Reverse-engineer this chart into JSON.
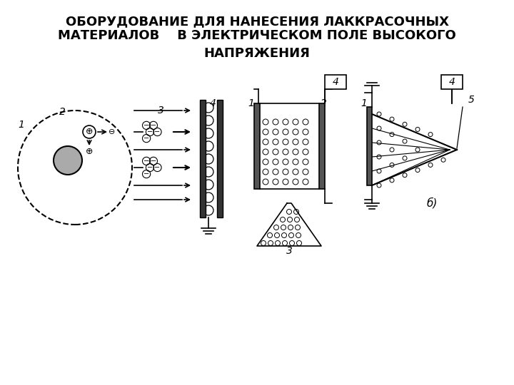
{
  "title_line1": "ОБОРУДОВАНИЕ ДЛЯ НАНЕСЕНИЯ ЛАККРАСОЧНЫХ",
  "title_line2": "МАТЕРИАЛОВ    В ЭЛЕКТРИЧЕСКОМ ПОЛЕ ВЫСОКОГО",
  "title_line3": "НАПРЯЖЕНИЯ",
  "bg_color": "#ffffff",
  "line_color": "#000000",
  "title_fontsize": 13,
  "diagram_color": "#222222"
}
